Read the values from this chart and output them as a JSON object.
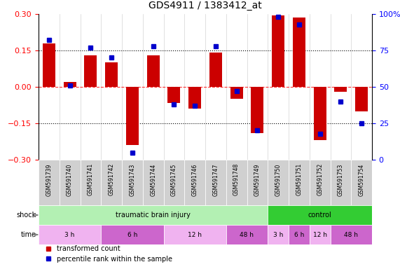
{
  "title": "GDS4911 / 1383412_at",
  "samples": [
    "GSM591739",
    "GSM591740",
    "GSM591741",
    "GSM591742",
    "GSM591743",
    "GSM591744",
    "GSM591745",
    "GSM591746",
    "GSM591747",
    "GSM591748",
    "GSM591749",
    "GSM591750",
    "GSM591751",
    "GSM591752",
    "GSM591753",
    "GSM591754"
  ],
  "transformed_count": [
    0.18,
    0.02,
    0.13,
    0.1,
    -0.24,
    0.13,
    -0.065,
    -0.09,
    0.14,
    -0.05,
    -0.19,
    0.295,
    0.285,
    -0.22,
    -0.02,
    -0.1
  ],
  "percentile_rank": [
    82,
    51,
    77,
    70,
    5,
    78,
    38,
    37,
    78,
    47,
    20,
    98,
    93,
    18,
    40,
    25
  ],
  "shock_groups": [
    {
      "label": "traumatic brain injury",
      "start": 0,
      "end": 11,
      "color": "#b3f0b3"
    },
    {
      "label": "control",
      "start": 11,
      "end": 16,
      "color": "#33cc33"
    }
  ],
  "time_groups": [
    {
      "label": "3 h",
      "start": 0,
      "end": 3,
      "color": "#f0b3f0"
    },
    {
      "label": "6 h",
      "start": 3,
      "end": 6,
      "color": "#cc66cc"
    },
    {
      "label": "12 h",
      "start": 6,
      "end": 9,
      "color": "#f0b3f0"
    },
    {
      "label": "48 h",
      "start": 9,
      "end": 11,
      "color": "#cc66cc"
    },
    {
      "label": "3 h",
      "start": 11,
      "end": 12,
      "color": "#f0b3f0"
    },
    {
      "label": "6 h",
      "start": 12,
      "end": 13,
      "color": "#cc66cc"
    },
    {
      "label": "12 h",
      "start": 13,
      "end": 14,
      "color": "#f0b3f0"
    },
    {
      "label": "48 h",
      "start": 14,
      "end": 16,
      "color": "#cc66cc"
    }
  ],
  "bar_color": "#CC0000",
  "dot_color": "#0000CC",
  "ylim_left": [
    -0.3,
    0.3
  ],
  "ylim_right": [
    0,
    100
  ],
  "yticks_left": [
    -0.3,
    -0.15,
    0,
    0.15,
    0.3
  ],
  "yticks_right": [
    0,
    25,
    50,
    75,
    100
  ],
  "ytick_right_labels": [
    "0",
    "25",
    "50",
    "75",
    "100%"
  ],
  "hline_positions": [
    -0.15,
    0.0,
    0.15
  ],
  "legend_items": [
    "transformed count",
    "percentile rank within the sample"
  ],
  "legend_colors": [
    "#CC0000",
    "#0000CC"
  ],
  "shock_label": "shock",
  "time_label": "time",
  "bg_color": "#f0f0f0",
  "sample_box_color": "#d0d0d0"
}
